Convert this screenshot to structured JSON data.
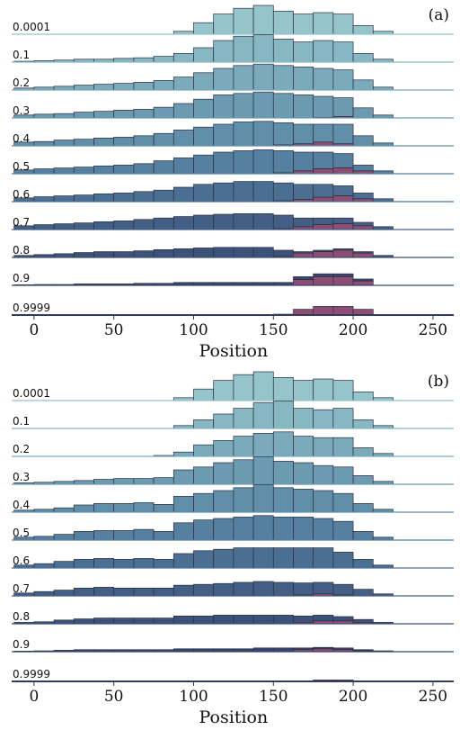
{
  "chart_data": [
    {
      "type": "ridgeline",
      "panel_label": "(a)",
      "xlabel": "Position",
      "xlim": [
        -14,
        263
      ],
      "xticks": [
        0,
        50,
        100,
        150,
        200,
        250
      ],
      "bins": [
        -12.5,
        0,
        12.5,
        25,
        37.5,
        50,
        62.5,
        75,
        87.5,
        100,
        112.5,
        125,
        137.5,
        150,
        162.5,
        175,
        187.5,
        200,
        212.5,
        225
      ],
      "highlight_color": "#8e4d74",
      "rows": [
        {
          "label": "0.0001",
          "color": "#95c4cb",
          "values": [
            0,
            0,
            0,
            0,
            0,
            0,
            0,
            0,
            1,
            4,
            7,
            9,
            10,
            8,
            7,
            7.5,
            7,
            3,
            1
          ],
          "highlight": [
            0,
            0,
            0,
            0,
            0,
            0,
            0,
            0,
            0,
            0,
            0,
            0,
            0,
            0,
            0,
            0,
            0,
            0,
            0
          ]
        },
        {
          "label": "0.1",
          "color": "#88b7c4",
          "values": [
            0.3,
            0.5,
            0.7,
            1,
            1,
            1.3,
            1.5,
            2,
            3,
            5,
            7.5,
            9,
            9.5,
            8,
            7,
            7.5,
            7,
            3,
            1
          ],
          "highlight": [
            0,
            0,
            0,
            0,
            0,
            0,
            0,
            0,
            0,
            0,
            0,
            0,
            0,
            0,
            0,
            0,
            0,
            0,
            0
          ]
        },
        {
          "label": "0.2",
          "color": "#7aaabb",
          "values": [
            0.7,
            1,
            1.3,
            1.7,
            2,
            2.3,
            2.7,
            3.3,
            4.5,
            6,
            7.5,
            8.5,
            9,
            8.5,
            8,
            7.5,
            7,
            3.5,
            1
          ],
          "highlight": [
            0,
            0,
            0,
            0,
            0,
            0,
            0,
            0,
            0,
            0,
            0,
            0,
            0,
            0,
            0,
            0,
            0,
            0,
            0
          ]
        },
        {
          "label": "0.3",
          "color": "#6c9bb1",
          "values": [
            1,
            1.3,
            1.5,
            2,
            2.3,
            2.7,
            3,
            3.7,
            5,
            6.5,
            8,
            8.5,
            9,
            8.5,
            8,
            7.3,
            6.5,
            3.5,
            1
          ],
          "highlight": [
            0,
            0,
            0,
            0,
            0,
            0,
            0,
            0,
            0,
            0,
            0,
            0,
            0,
            0,
            0,
            0.2,
            0.5,
            0,
            0
          ]
        },
        {
          "label": "0.4",
          "color": "#618fa9",
          "values": [
            1.3,
            1.5,
            2,
            2.3,
            2.7,
            3,
            3.5,
            4.3,
            5.5,
            6.5,
            7.5,
            8.3,
            8.5,
            7.7,
            6.8,
            6.2,
            6.8,
            3.5,
            1
          ],
          "highlight": [
            0,
            0,
            0,
            0,
            0,
            0,
            0,
            0,
            0,
            0,
            0,
            0,
            0,
            0.3,
            0.7,
            1.3,
            0.7,
            0,
            0
          ]
        },
        {
          "label": "0.5",
          "color": "#5680a0",
          "values": [
            1.3,
            1.7,
            2,
            2.3,
            2.7,
            3,
            3.5,
            4.5,
            5.5,
            6.5,
            7.5,
            8,
            8.3,
            7.7,
            6.5,
            5.8,
            5,
            2,
            1
          ],
          "highlight": [
            0,
            0,
            0,
            0,
            0,
            0,
            0,
            0,
            0,
            0,
            0,
            0,
            0,
            0.3,
            1,
            1.7,
            2,
            1,
            0
          ]
        },
        {
          "label": "0.6",
          "color": "#4b6f93",
          "values": [
            1.3,
            1.7,
            2,
            2.3,
            2.7,
            3,
            3.5,
            4,
            5,
            6,
            6.5,
            7,
            7,
            6.2,
            5.2,
            4.5,
            3.5,
            2,
            1
          ],
          "highlight": [
            0,
            0,
            0,
            0,
            0,
            0,
            0,
            0,
            0,
            0,
            0,
            0,
            0,
            0.3,
            0.8,
            1.5,
            2,
            1,
            0
          ]
        },
        {
          "label": "0.7",
          "color": "#435f85",
          "values": [
            1.3,
            1.7,
            2,
            2.3,
            2.7,
            3,
            3.5,
            4,
            4.5,
            5,
            5.3,
            5.5,
            5.5,
            4.7,
            3,
            2.3,
            2,
            1.2,
            1
          ],
          "highlight": [
            0,
            0,
            0,
            0,
            0,
            0,
            0,
            0,
            0,
            0,
            0,
            0,
            0,
            0.3,
            1,
            1.7,
            2,
            1.3,
            0
          ]
        },
        {
          "label": "0.8",
          "color": "#3d5279",
          "values": [
            0.7,
            1,
            1.3,
            1.7,
            2,
            2,
            2.3,
            2.7,
            3,
            3.3,
            3.5,
            3.5,
            3.5,
            2.2,
            0.5,
            0.5,
            0.5,
            0.5,
            0.7
          ],
          "highlight": [
            0,
            0,
            0,
            0,
            0,
            0,
            0,
            0,
            0,
            0,
            0,
            0,
            0,
            0.3,
            1.5,
            2,
            2.5,
            1.5,
            0
          ]
        },
        {
          "label": "0.9",
          "color": "#39456c",
          "values": [
            0.2,
            0.3,
            0.3,
            0.5,
            0.5,
            0.5,
            0.7,
            0.7,
            1,
            1,
            1,
            1,
            1,
            1,
            1,
            1,
            1,
            0.7,
            0
          ],
          "highlight": [
            0,
            0,
            0,
            0,
            0,
            0,
            0,
            0,
            0,
            0,
            0,
            0,
            0,
            0,
            2,
            3,
            3,
            1.5,
            0
          ]
        },
        {
          "label": "0.9999",
          "color": "#35395e",
          "values": [
            0,
            0,
            0,
            0,
            0,
            0,
            0,
            0,
            0,
            0,
            0,
            0,
            0,
            0,
            0,
            0,
            0,
            0,
            0
          ],
          "highlight": [
            0,
            0,
            0,
            0,
            0,
            0,
            0,
            0,
            0,
            0,
            0,
            0,
            0,
            0.3,
            2,
            3,
            3,
            2,
            0
          ]
        }
      ]
    },
    {
      "type": "ridgeline",
      "panel_label": "(b)",
      "xlabel": "Position",
      "xlim": [
        -14,
        263
      ],
      "xticks": [
        0,
        50,
        100,
        150,
        200,
        250
      ],
      "bins": [
        -12.5,
        0,
        12.5,
        25,
        37.5,
        50,
        62.5,
        75,
        87.5,
        100,
        112.5,
        125,
        137.5,
        150,
        162.5,
        175,
        187.5,
        200,
        212.5,
        225
      ],
      "highlight_color": "#8e4d74",
      "rows": [
        {
          "label": "0.0001",
          "color": "#95c4cb",
          "values": [
            0,
            0,
            0,
            0,
            0,
            0,
            0,
            0,
            1,
            4,
            7,
            9,
            10,
            8,
            7,
            7.5,
            7,
            3,
            1
          ],
          "highlight": [
            0,
            0,
            0,
            0,
            0,
            0,
            0,
            0,
            0,
            0,
            0,
            0,
            0,
            0,
            0,
            0,
            0,
            0,
            0
          ]
        },
        {
          "label": "0.1",
          "color": "#88b7c4",
          "values": [
            0,
            0,
            0,
            0,
            0,
            0,
            0,
            0,
            1,
            3,
            5,
            7,
            9,
            9.5,
            7,
            6.5,
            7,
            3,
            1
          ],
          "highlight": [
            0,
            0,
            0,
            0,
            0,
            0,
            0,
            0,
            0,
            0,
            0,
            0,
            0,
            0,
            0,
            0,
            0,
            0,
            0
          ]
        },
        {
          "label": "0.2",
          "color": "#7aaabb",
          "values": [
            0,
            0,
            0,
            0,
            0,
            0,
            0,
            0.3,
            1.5,
            4,
            5.5,
            7,
            8,
            8.5,
            7,
            6.5,
            6.5,
            3,
            1
          ],
          "highlight": [
            0,
            0,
            0,
            0,
            0,
            0,
            0,
            0,
            0,
            0,
            0,
            0,
            0,
            0,
            0,
            0,
            0,
            0,
            0
          ]
        },
        {
          "label": "0.3",
          "color": "#6c9bb1",
          "values": [
            0.5,
            0.7,
            1,
            1.3,
            1.7,
            2,
            2,
            2.3,
            5,
            6,
            7.5,
            8.5,
            9.5,
            8,
            7.5,
            6.5,
            6,
            3,
            1
          ],
          "highlight": [
            0,
            0,
            0,
            0,
            0,
            0,
            0,
            0,
            0,
            0,
            0,
            0,
            0,
            0,
            0,
            0,
            0,
            0,
            0
          ]
        },
        {
          "label": "0.4",
          "color": "#618fa9",
          "values": [
            0.7,
            1,
            1.5,
            2.5,
            3,
            3,
            3.3,
            2.7,
            5.5,
            6.5,
            7.5,
            8.5,
            9.5,
            8.5,
            8,
            7.5,
            6.5,
            3,
            1
          ],
          "highlight": [
            0,
            0,
            0,
            0,
            0,
            0,
            0,
            0,
            0,
            0,
            0,
            0,
            0,
            0,
            0,
            0,
            0,
            0,
            0
          ]
        },
        {
          "label": "0.5",
          "color": "#5680a0",
          "values": [
            1,
            1.3,
            2,
            3,
            3.3,
            3.3,
            3.7,
            3,
            6,
            7,
            7.5,
            8,
            8.5,
            8,
            8,
            7.5,
            6.5,
            3,
            1
          ],
          "highlight": [
            0,
            0,
            0,
            0,
            0,
            0,
            0,
            0,
            0,
            0,
            0,
            0,
            0,
            0,
            0,
            0,
            0,
            0,
            0
          ]
        },
        {
          "label": "0.6",
          "color": "#4b6f93",
          "values": [
            1,
            1.5,
            2.3,
            3,
            3.3,
            3,
            3.3,
            3,
            5,
            6,
            6.5,
            7,
            7,
            7,
            7,
            7,
            5.5,
            3,
            1
          ],
          "highlight": [
            0,
            0,
            0,
            0,
            0,
            0,
            0,
            0,
            0,
            0,
            0,
            0,
            0,
            0,
            0,
            0,
            0,
            0,
            0
          ]
        },
        {
          "label": "0.7",
          "color": "#435f85",
          "values": [
            1,
            1.5,
            2,
            2.7,
            3,
            2.7,
            2.7,
            2.7,
            3.7,
            4,
            4.3,
            4.7,
            5,
            4.7,
            4.2,
            4,
            3.7,
            2.3,
            0.7
          ],
          "highlight": [
            0,
            0,
            0,
            0,
            0,
            0,
            0,
            0,
            0,
            0,
            0,
            0,
            0,
            0,
            0.3,
            0.7,
            0.3,
            0,
            0
          ]
        },
        {
          "label": "0.8",
          "color": "#3d5279",
          "values": [
            0.5,
            0.7,
            1.3,
            1.7,
            2,
            2,
            2,
            2,
            2.7,
            2.7,
            3,
            3,
            3,
            3,
            2.2,
            2,
            1.5,
            1,
            0.5
          ],
          "highlight": [
            0,
            0,
            0,
            0,
            0,
            0,
            0,
            0,
            0,
            0,
            0,
            0,
            0,
            0,
            0.5,
            1,
            1,
            0.5,
            0
          ]
        },
        {
          "label": "0.9",
          "color": "#39456c",
          "values": [
            0.2,
            0.3,
            0.5,
            0.7,
            0.7,
            0.7,
            0.7,
            0.7,
            1,
            1,
            1,
            1,
            1.3,
            1.3,
            0.6,
            0.5,
            0.6,
            0.4,
            0.3
          ],
          "highlight": [
            0,
            0,
            0,
            0,
            0,
            0,
            0,
            0,
            0,
            0,
            0,
            0,
            0,
            0,
            0.7,
            1,
            0.7,
            0.3,
            0
          ]
        },
        {
          "label": "0.9999",
          "color": "#35395e",
          "values": [
            0,
            0,
            0,
            0,
            0,
            0,
            0,
            0,
            0,
            0,
            0,
            0,
            0,
            0,
            0,
            0,
            0,
            0,
            0
          ],
          "highlight": [
            0,
            0,
            0,
            0,
            0,
            0,
            0,
            0,
            0,
            0,
            0,
            0,
            0,
            0,
            0.2,
            0.5,
            0.5,
            0,
            0
          ]
        }
      ]
    }
  ]
}
